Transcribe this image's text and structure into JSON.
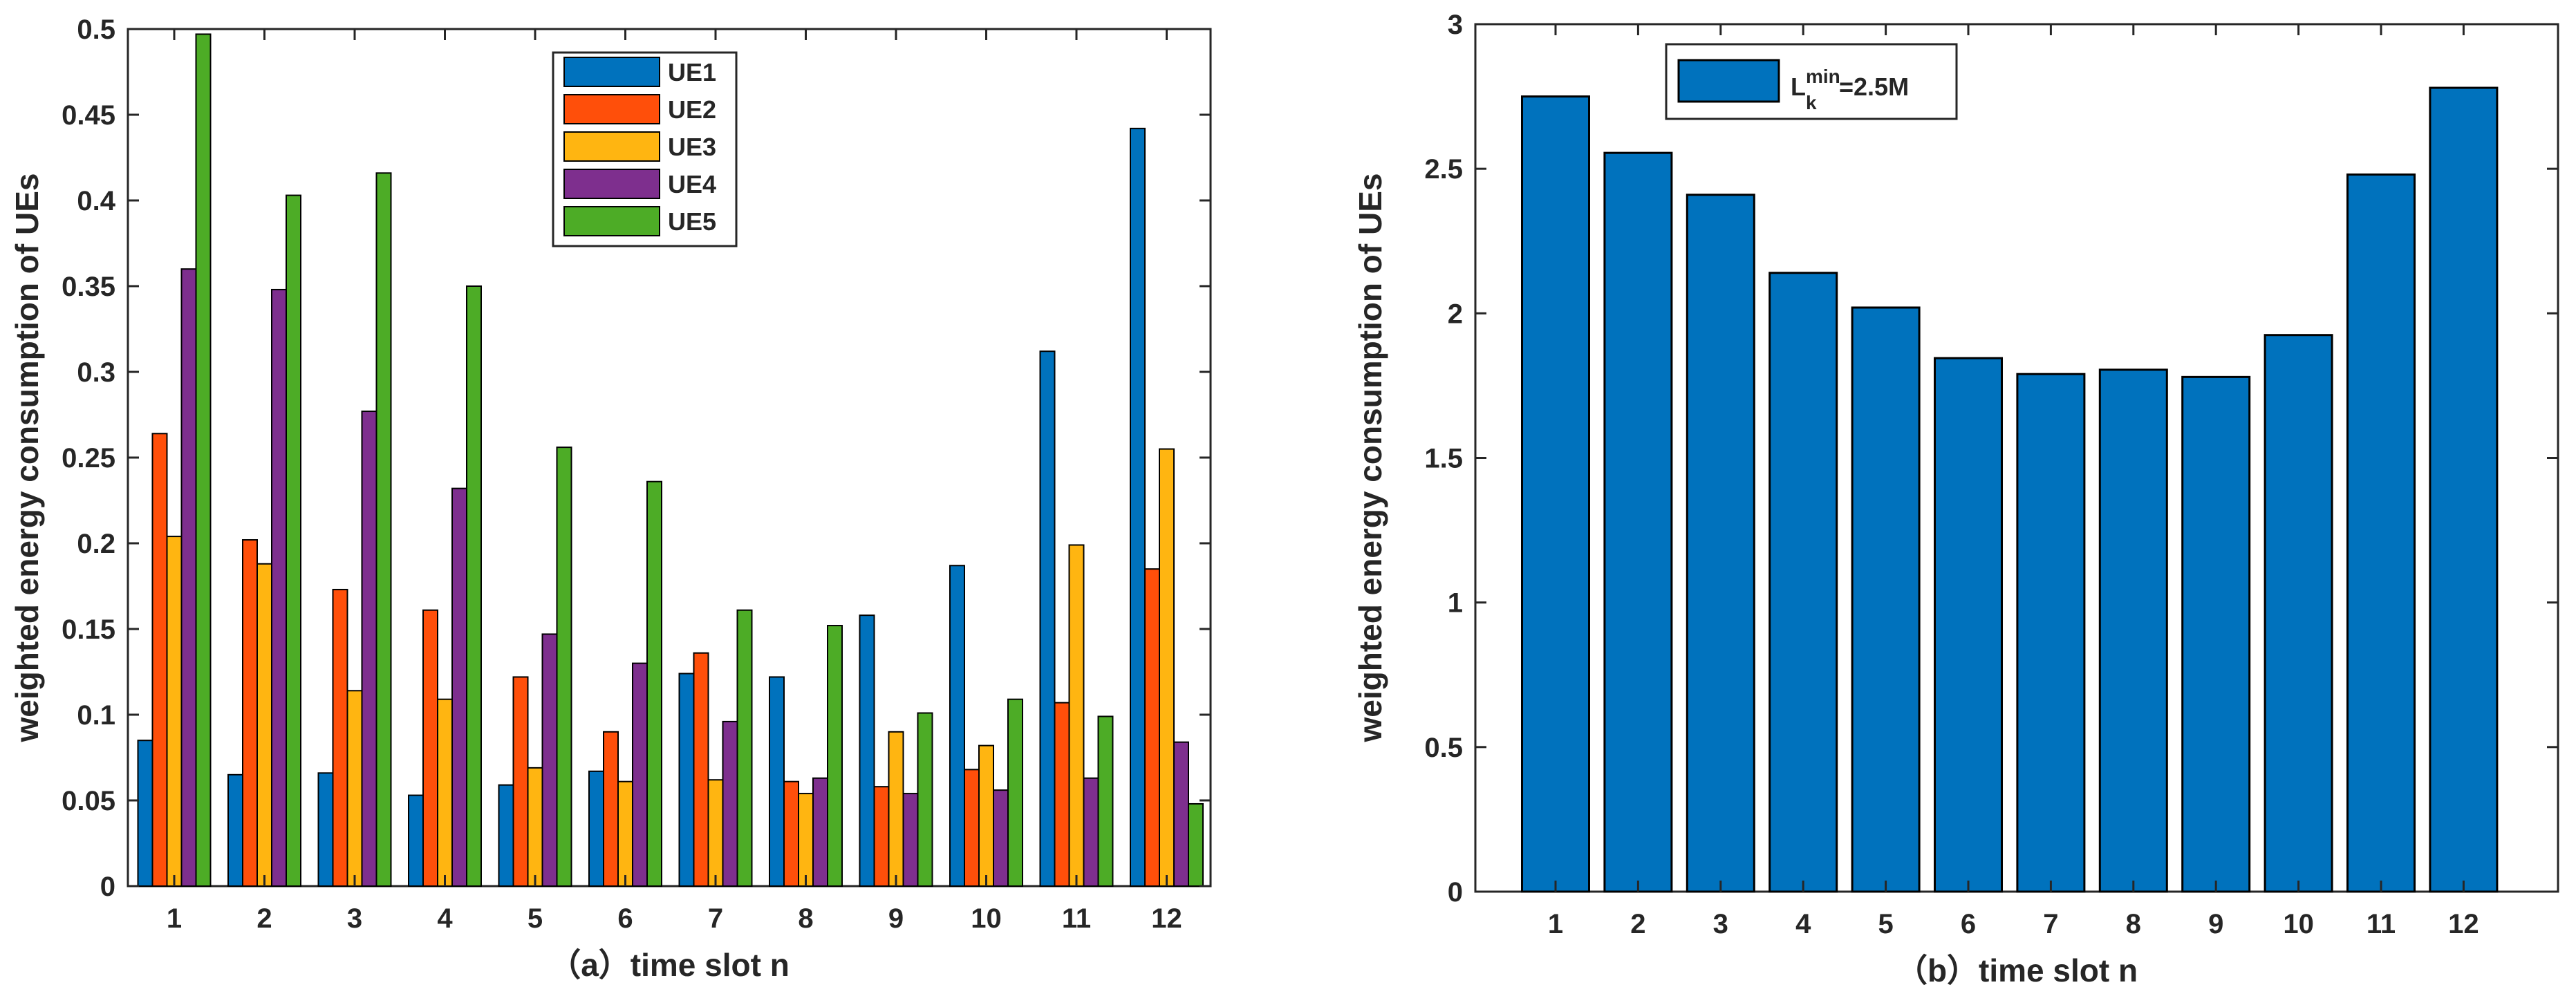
{
  "chart_data": [
    {
      "type": "bar",
      "title": "",
      "xlabel": "（a）time slot n",
      "ylabel": "weighted energy consumption of UEs",
      "ylim": [
        0,
        0.5
      ],
      "yticks": [
        0,
        0.05,
        0.1,
        0.15,
        0.2,
        0.25,
        0.3,
        0.35,
        0.4,
        0.45,
        0.5
      ],
      "ytick_labels": [
        "0",
        "0.05",
        "0.1",
        "0.15",
        "0.2",
        "0.25",
        "0.3",
        "0.35",
        "0.4",
        "0.45",
        "0.5"
      ],
      "categories": [
        "1",
        "2",
        "3",
        "4",
        "5",
        "6",
        "7",
        "8",
        "9",
        "10",
        "11",
        "12"
      ],
      "legend_position": "top-center",
      "series": [
        {
          "name": "UE1",
          "color": "#0072BD",
          "values": [
            0.085,
            0.065,
            0.066,
            0.053,
            0.059,
            0.067,
            0.124,
            0.122,
            0.158,
            0.187,
            0.312,
            0.442
          ]
        },
        {
          "name": "UE2",
          "color": "#FF4F0A",
          "values": [
            0.264,
            0.202,
            0.173,
            0.161,
            0.122,
            0.09,
            0.136,
            0.061,
            0.058,
            0.068,
            0.107,
            0.185
          ]
        },
        {
          "name": "UE3",
          "color": "#FFB511",
          "values": [
            0.204,
            0.188,
            0.114,
            0.109,
            0.069,
            0.061,
            0.062,
            0.054,
            0.09,
            0.082,
            0.199,
            0.255
          ]
        },
        {
          "name": "UE4",
          "color": "#7E2F8E",
          "values": [
            0.36,
            0.348,
            0.277,
            0.232,
            0.147,
            0.13,
            0.096,
            0.063,
            0.054,
            0.056,
            0.063,
            0.084
          ]
        },
        {
          "name": "UE5",
          "color": "#4DAC26",
          "values": [
            0.497,
            0.403,
            0.416,
            0.35,
            0.256,
            0.236,
            0.161,
            0.152,
            0.101,
            0.109,
            0.099,
            0.048
          ]
        }
      ]
    },
    {
      "type": "bar",
      "title": "",
      "xlabel": "（b）time slot n",
      "ylabel": "weighted energy consumption of UEs",
      "ylim": [
        0,
        3
      ],
      "yticks": [
        0,
        0.5,
        1,
        1.5,
        2,
        2.5,
        3
      ],
      "ytick_labels": [
        "0",
        "0.5",
        "1",
        "1.5",
        "2",
        "2.5",
        "3"
      ],
      "categories": [
        "1",
        "2",
        "3",
        "4",
        "5",
        "6",
        "7",
        "8",
        "9",
        "10",
        "11",
        "12"
      ],
      "legend_position": "top-left",
      "legend": {
        "base": "L",
        "sub": "k",
        "sup": "min",
        "suffix": "=2.5M"
      },
      "series": [
        {
          "name": "L_k^min=2.5M",
          "color": "#0072BD",
          "values": [
            2.75,
            2.555,
            2.41,
            2.14,
            2.02,
            1.845,
            1.79,
            1.805,
            1.78,
            1.925,
            2.48,
            2.78
          ]
        }
      ]
    }
  ]
}
